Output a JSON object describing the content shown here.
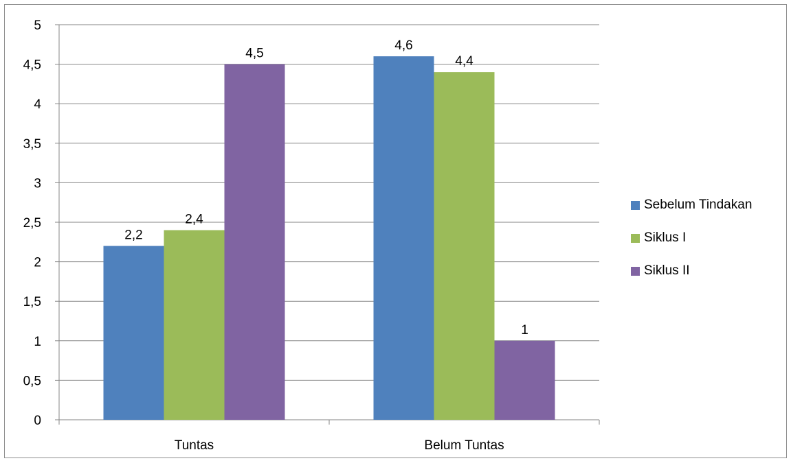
{
  "chart_data": {
    "type": "bar",
    "categories": [
      "Tuntas",
      "Belum Tuntas"
    ],
    "series": [
      {
        "name": "Sebelum Tindakan",
        "values": [
          2.2,
          4.6
        ],
        "labels": [
          "2,2",
          "4,6"
        ],
        "color": "#4f81bd"
      },
      {
        "name": "Siklus I",
        "values": [
          2.4,
          4.4
        ],
        "labels": [
          "2,4",
          "4,4"
        ],
        "color": "#9bbb59"
      },
      {
        "name": "Siklus II",
        "values": [
          4.5,
          1
        ],
        "labels": [
          "4,5",
          "1"
        ],
        "color": "#8064a2"
      }
    ],
    "ylim": [
      0,
      5
    ],
    "yticks": [
      0,
      0.5,
      1,
      1.5,
      2,
      2.5,
      3,
      3.5,
      4,
      4.5,
      5
    ],
    "ytick_labels": [
      "0",
      "0,5",
      "1",
      "1,5",
      "2",
      "2,5",
      "3",
      "3,5",
      "4",
      "4,5",
      "5"
    ],
    "grid": true,
    "legend_position": "right",
    "title": "",
    "xlabel": "",
    "ylabel": ""
  }
}
